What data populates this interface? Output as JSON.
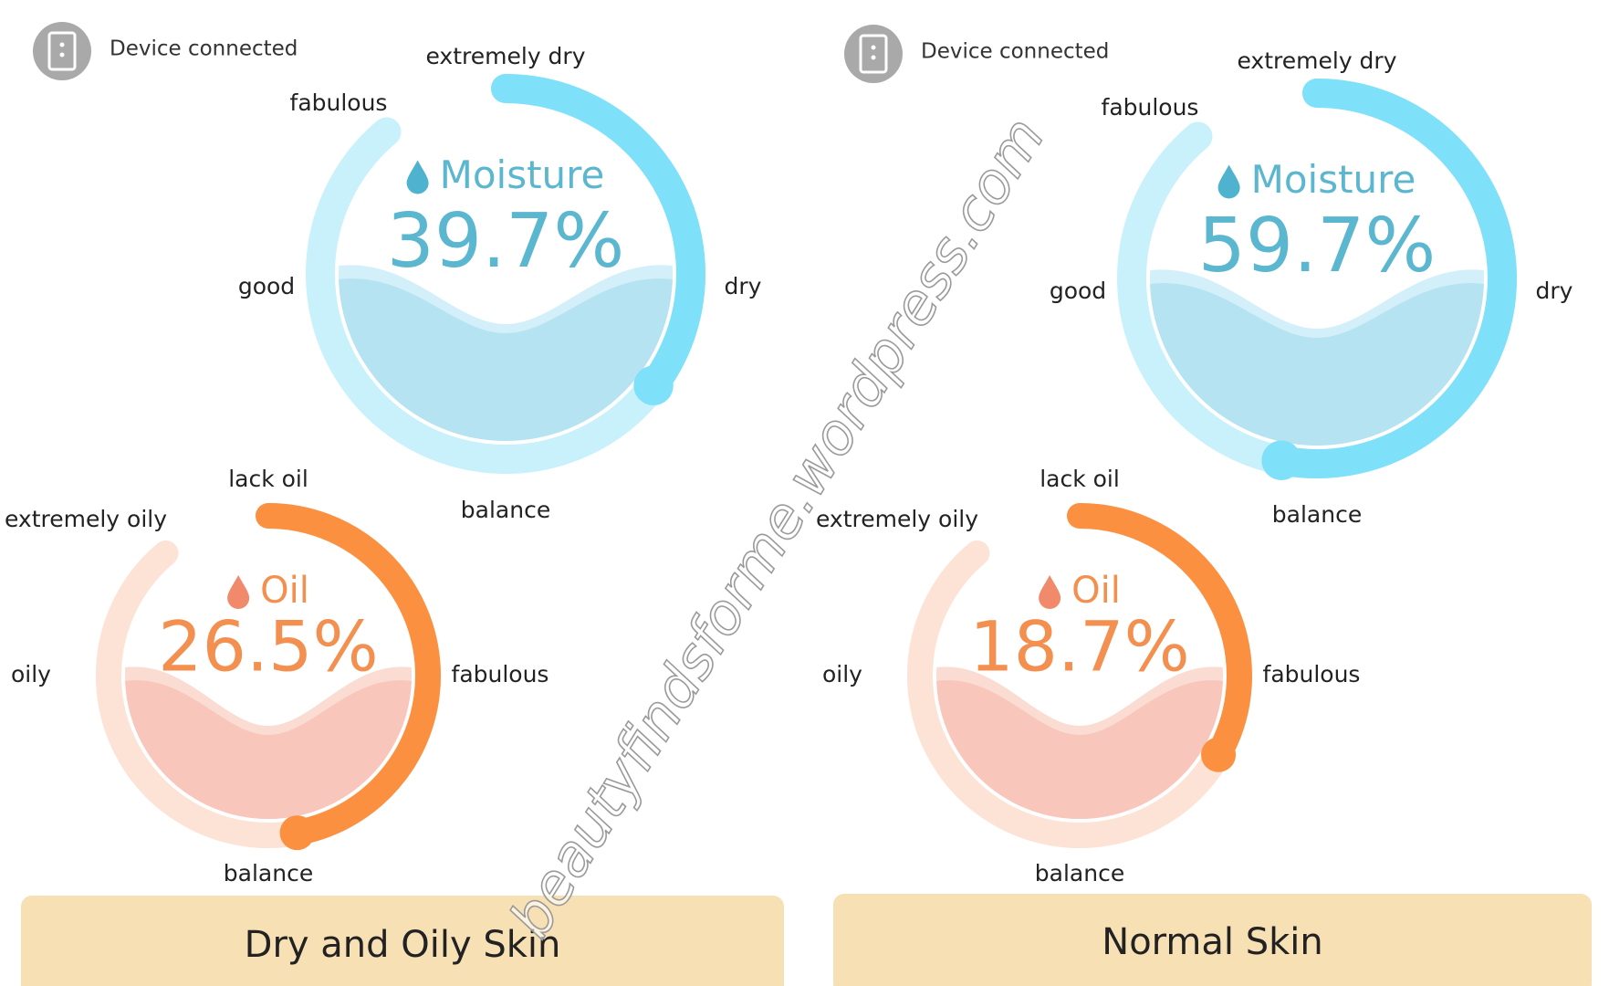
{
  "panels": [
    {
      "status": "Device connected",
      "moisture": {
        "title": "Moisture",
        "value": 39.7,
        "value_label": "39.7%",
        "zones": {
          "top": "extremely dry",
          "upper_left": "fabulous",
          "left": "good",
          "right": "dry",
          "bottom": "balance"
        }
      },
      "oil": {
        "title": "Oil",
        "value": 26.5,
        "value_label": "26.5%",
        "zones": {
          "top": "lack oil",
          "upper_left": "extremely oily",
          "left": "oily",
          "right": "fabulous",
          "bottom": "balance"
        }
      },
      "result": "Dry and Oily Skin"
    },
    {
      "status": "Device connected",
      "moisture": {
        "title": "Moisture",
        "value": 59.7,
        "value_label": "59.7%",
        "zones": {
          "top": "extremely dry",
          "upper_left": "fabulous",
          "left": "good",
          "right": "dry",
          "bottom": "balance"
        }
      },
      "oil": {
        "title": "Oil",
        "value": 18.7,
        "value_label": "18.7%",
        "zones": {
          "top": "lack oil",
          "upper_left": "extremely oily",
          "left": "oily",
          "right": "fabulous",
          "bottom": "balance"
        }
      },
      "result": "Normal Skin"
    }
  ],
  "watermark": "beautyfindsforme.wordpress.com"
}
